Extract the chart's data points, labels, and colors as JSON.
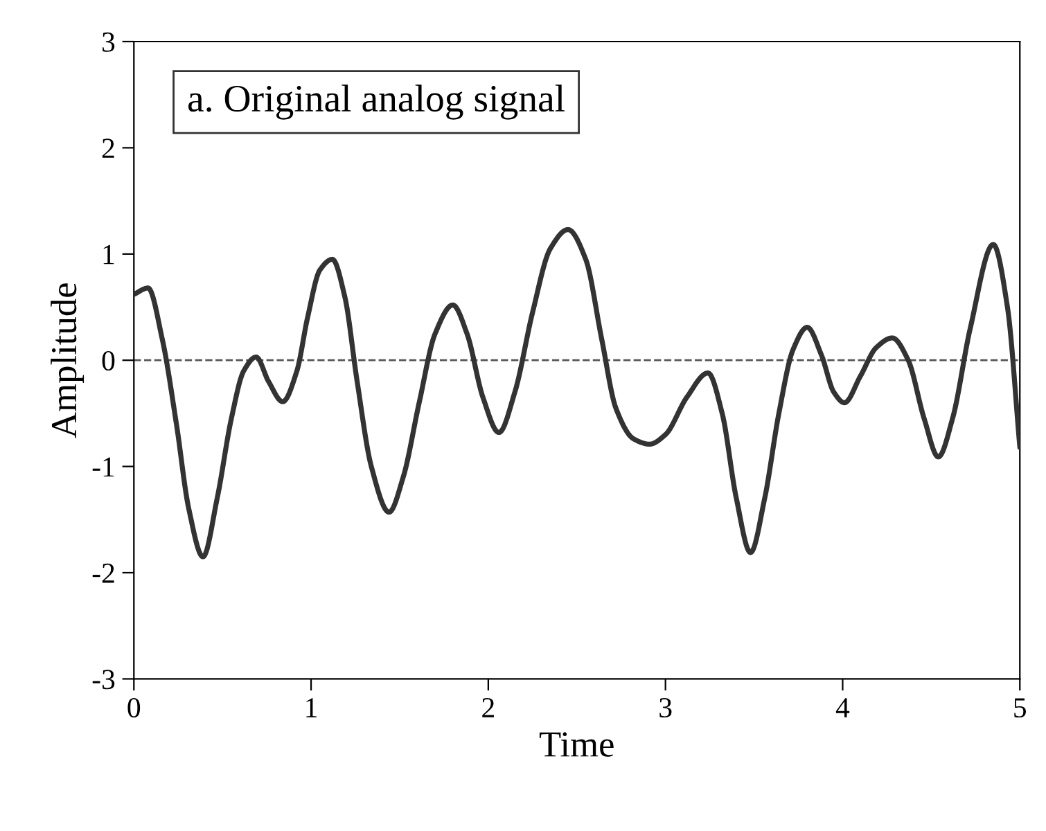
{
  "chart_data": {
    "type": "line",
    "xlabel": "Time",
    "ylabel": "Amplitude",
    "annotations": [
      "a. Original analog signal"
    ],
    "x": [
      0,
      0.08,
      0.16,
      0.24,
      0.31,
      0.39,
      0.47,
      0.55,
      0.62,
      0.69,
      0.76,
      0.84,
      0.92,
      0.98,
      1.05,
      1.12,
      1.19,
      1.26,
      1.34,
      1.44,
      1.52,
      1.61,
      1.7,
      1.8,
      1.88,
      1.97,
      2.06,
      2.15,
      2.25,
      2.35,
      2.45,
      2.55,
      2.64,
      2.72,
      2.82,
      2.91,
      3.0,
      3.12,
      3.24,
      3.32,
      3.4,
      3.48,
      3.56,
      3.64,
      3.72,
      3.8,
      3.88,
      3.95,
      4.01,
      4.1,
      4.19,
      4.28,
      4.37,
      4.46,
      4.54,
      4.62,
      4.72,
      4.85,
      4.93,
      5.0
    ],
    "series": [
      {
        "color": "#333333",
        "values": [
          0.62,
          0.68,
          0.2,
          -0.6,
          -1.4,
          -1.85,
          -1.3,
          -0.55,
          -0.1,
          0.03,
          -0.2,
          -0.39,
          -0.1,
          0.4,
          0.85,
          0.95,
          0.6,
          -0.2,
          -1.0,
          -1.43,
          -1.1,
          -0.4,
          0.25,
          0.52,
          0.25,
          -0.35,
          -0.68,
          -0.3,
          0.45,
          1.05,
          1.23,
          0.95,
          0.2,
          -0.45,
          -0.74,
          -0.79,
          -0.7,
          -0.35,
          -0.12,
          -0.5,
          -1.3,
          -1.81,
          -1.3,
          -0.5,
          0.1,
          0.31,
          0.05,
          -0.3,
          -0.4,
          -0.15,
          0.12,
          0.21,
          0.0,
          -0.55,
          -0.91,
          -0.55,
          0.3,
          1.09,
          0.5,
          -0.82
        ]
      }
    ],
    "xlim": [
      0,
      5
    ],
    "ylim": [
      -3,
      3
    ],
    "xticks": [
      0,
      1,
      2,
      3,
      4,
      5
    ],
    "yticks": [
      -3,
      -2,
      -1,
      0,
      1,
      2,
      3
    ],
    "ref_lines": [
      {
        "axis": "y",
        "value": 0,
        "line_style": "dashed",
        "color": "#555555"
      }
    ],
    "grid": false,
    "legend": false,
    "marker": "none",
    "line_style": "solid"
  }
}
